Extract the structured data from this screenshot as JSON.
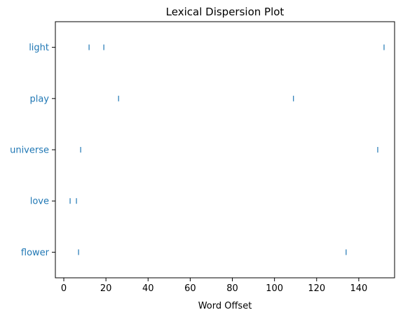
{
  "chart_data": {
    "type": "scatter",
    "title": "Lexical Dispersion Plot",
    "xlabel": "Word Offset",
    "ylabel": "",
    "xlim": [
      -4,
      157
    ],
    "xticks": [
      0,
      20,
      40,
      60,
      80,
      100,
      120,
      140
    ],
    "words": [
      "light",
      "play",
      "universe",
      "love",
      "flower"
    ],
    "offsets": {
      "light": [
        12,
        19,
        152
      ],
      "play": [
        26,
        109
      ],
      "universe": [
        8,
        149
      ],
      "love": [
        3,
        6
      ],
      "flower": [
        7,
        134
      ]
    },
    "marker": "|",
    "marker_color": "#1f77b4",
    "label_color": "#1f77b4",
    "grid": false
  }
}
